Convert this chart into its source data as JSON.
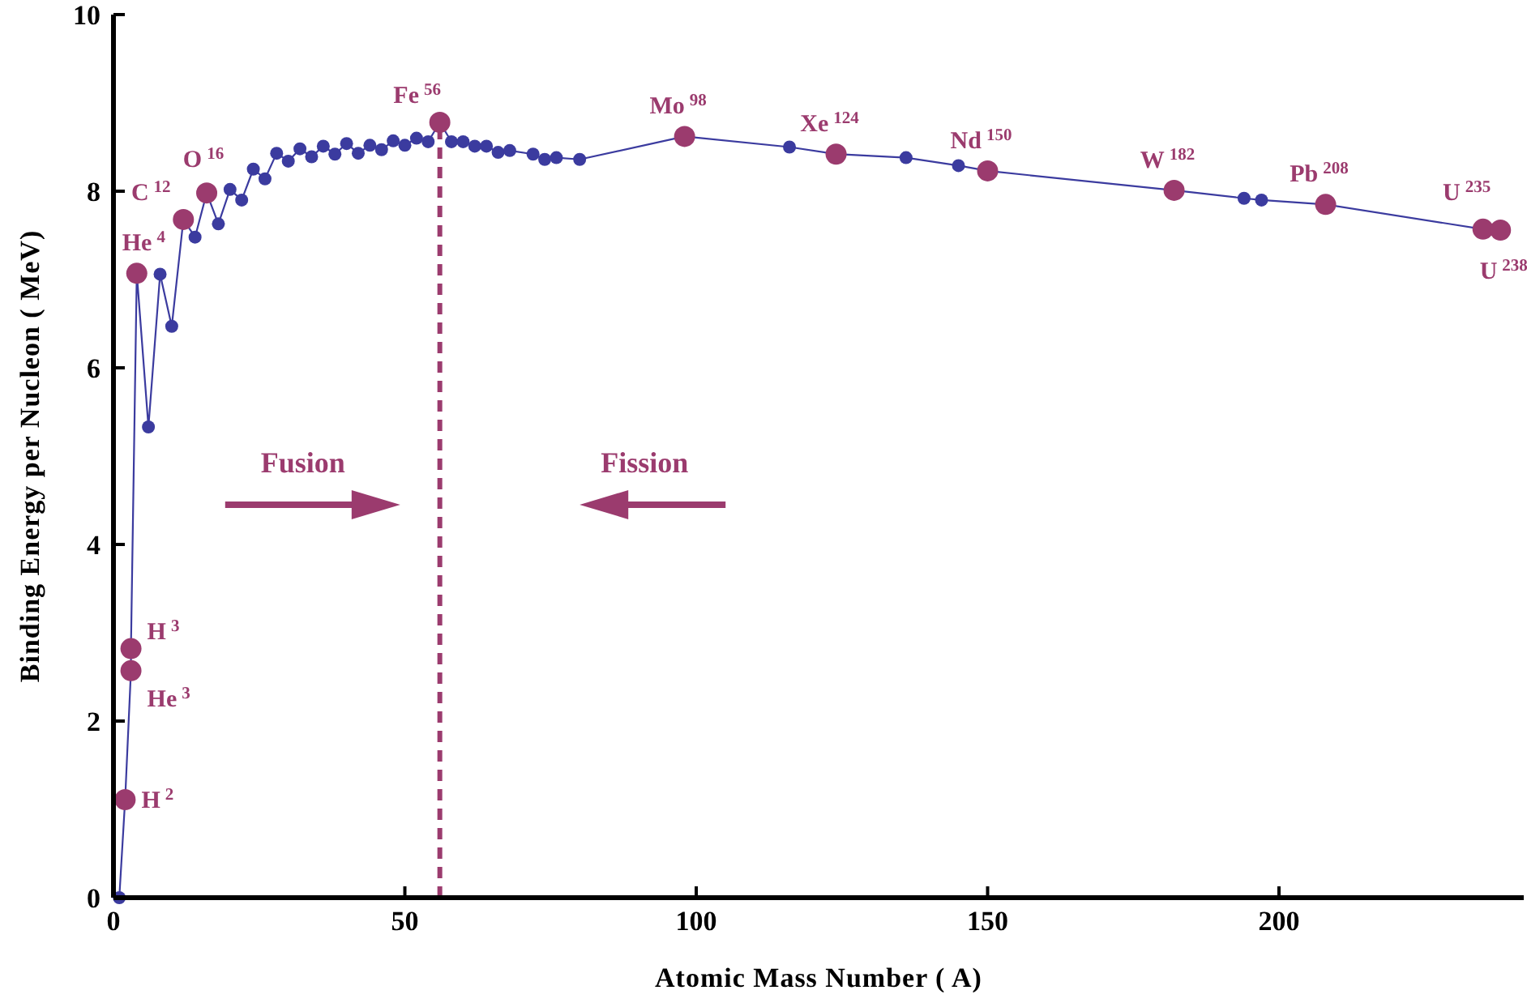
{
  "chart_data": {
    "type": "line",
    "xlabel": "Atomic Mass Number ( A)",
    "ylabel": "Binding Energy per Nucleon ( MeV)",
    "xlim": [
      0,
      242
    ],
    "ylim": [
      0,
      10
    ],
    "xticks": [
      0,
      50,
      100,
      150,
      200
    ],
    "yticks": [
      0,
      2,
      4,
      6,
      8,
      10
    ],
    "grid": false,
    "marker": "circle",
    "line_style": "solid",
    "series": [
      {
        "type": "line",
        "color": "#3b3b9f",
        "x": [
          1,
          2,
          3,
          3,
          4,
          6,
          8,
          10,
          12,
          14,
          16,
          18,
          20,
          22,
          24,
          26,
          28,
          30,
          32,
          34,
          36,
          38,
          40,
          42,
          44,
          46,
          48,
          50,
          52,
          54,
          56,
          58,
          60,
          62,
          64,
          66,
          68,
          72,
          74,
          76,
          80,
          98,
          116,
          124,
          136,
          145,
          150,
          182,
          194,
          197,
          208,
          235,
          238
        ],
        "values": [
          0,
          1.11,
          2.57,
          2.82,
          7.07,
          5.33,
          7.06,
          6.47,
          7.68,
          7.48,
          7.98,
          7.63,
          8.02,
          7.9,
          8.25,
          8.14,
          8.43,
          8.34,
          8.48,
          8.39,
          8.51,
          8.42,
          8.54,
          8.43,
          8.52,
          8.47,
          8.57,
          8.52,
          8.6,
          8.56,
          8.78,
          8.56,
          8.56,
          8.51,
          8.51,
          8.44,
          8.46,
          8.42,
          8.36,
          8.38,
          8.36,
          8.62,
          8.5,
          8.42,
          8.38,
          8.29,
          8.23,
          8.01,
          7.92,
          7.9,
          7.85,
          7.57,
          7.56
        ]
      },
      {
        "type": "scatter",
        "color": "#9b3b6e",
        "x": [
          2,
          3,
          3,
          4,
          12,
          16,
          56,
          98,
          124,
          150,
          182,
          208,
          235,
          238
        ],
        "values": [
          1.11,
          2.82,
          2.57,
          7.07,
          7.68,
          7.98,
          8.78,
          8.62,
          8.42,
          8.23,
          8.01,
          7.85,
          7.57,
          7.56
        ]
      }
    ],
    "ref_lines": [
      {
        "axis": "x",
        "value": 56,
        "color": "#9b3b6e",
        "line_style": "dashed"
      }
    ],
    "annotations": [
      {
        "text": "H$^{2}$",
        "x": 2,
        "y": 1.11
      },
      {
        "text": "H$^{3}$",
        "x": 3,
        "y": 2.82
      },
      {
        "text": "He$^{3}$",
        "x": 3,
        "y": 2.57
      },
      {
        "text": "He$^{4}$",
        "x": 4,
        "y": 7.07
      },
      {
        "text": "C$^{12}$",
        "x": 12,
        "y": 7.68
      },
      {
        "text": "O$^{16}$",
        "x": 16,
        "y": 7.98
      },
      {
        "text": "Fe$^{56}$",
        "x": 56,
        "y": 8.78
      },
      {
        "text": "Mo$^{98}$",
        "x": 98,
        "y": 8.62
      },
      {
        "text": "Xe$^{124}$",
        "x": 124,
        "y": 8.42
      },
      {
        "text": "Nd$^{150}$",
        "x": 150,
        "y": 8.23
      },
      {
        "text": "W$^{182}$",
        "x": 182,
        "y": 8.01
      },
      {
        "text": "Pb$^{208}$",
        "x": 208,
        "y": 7.85
      },
      {
        "text": "U$^{235}$",
        "x": 235,
        "y": 7.57
      },
      {
        "text": "U$^{238}$",
        "x": 238,
        "y": 7.56
      },
      "Fusion",
      "Fission"
    ]
  }
}
